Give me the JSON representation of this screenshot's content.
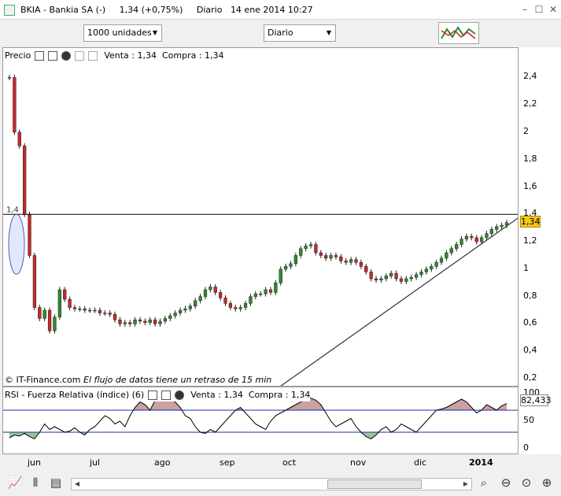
{
  "title_bar": {
    "title": "BKIA - Bankia SA (-)     1,34 (+0,75%)     Diario   14 ene 2014 10:27",
    "minimize": "–",
    "maximize": "☐",
    "close": "✕"
  },
  "toolbar": {
    "quantity_select": "1000 unidades",
    "period_select": "Diario"
  },
  "price_panel": {
    "title": "Precio",
    "quote": "Venta : 1,34  Compra : 1,34",
    "y_ticks": [
      "2,4",
      "2,2",
      "2",
      "1,8",
      "1,6",
      "1,4",
      "1,2",
      "1",
      "0,8",
      "0,6",
      "0,4",
      "0,2"
    ],
    "last_price": "1,34",
    "hline_label": "1,4",
    "footer_source": "© IT-Finance.com",
    "footer_note": "El flujo de datos tiene un retraso de 15 min"
  },
  "rsi_panel": {
    "title": "RSI - Fuerza Relativa (índice) (6)",
    "quote": "Venta : 1,34  Compra : 1,34",
    "y_ticks": [
      "100",
      "50",
      "0"
    ],
    "last_value": "82,433"
  },
  "x_axis": {
    "labels": [
      "jun",
      "jul",
      "ago",
      "sep",
      "oct",
      "nov",
      "dic",
      "2014"
    ]
  },
  "colors": {
    "up": "#2e8b2e",
    "down": "#c8282c",
    "accent": "#f5c518",
    "rsi_upper_fill": "#caa0a0",
    "rsi_lower_fill": "#9cc49c",
    "level_line": "#1a2fa0"
  },
  "chart_data": {
    "type": "candlestick",
    "y_range": [
      0.2,
      2.5
    ],
    "segments": [
      {
        "start": 0,
        "end": 3,
        "values": [
          2.4,
          2.0,
          1.9,
          1.4
        ]
      },
      {
        "start": 4,
        "end": 10,
        "values": [
          1.1,
          0.72,
          0.64,
          0.7,
          0.55,
          0.65,
          0.85
        ]
      },
      {
        "start": 11,
        "end": 20,
        "values": [
          0.78,
          0.72,
          0.71,
          0.71,
          0.7,
          0.7,
          0.7,
          0.68,
          0.68,
          0.67
        ]
      },
      {
        "start": 21,
        "end": 50,
        "values": [
          0.63,
          0.6,
          0.61,
          0.6,
          0.63,
          0.62,
          0.61,
          0.63,
          0.6,
          0.62,
          0.64,
          0.66,
          0.68,
          0.7,
          0.71,
          0.73,
          0.77,
          0.8,
          0.85,
          0.87,
          0.83,
          0.79,
          0.75,
          0.72,
          0.71,
          0.72,
          0.75,
          0.8,
          0.82,
          0.82
        ]
      },
      {
        "start": 51,
        "end": 80,
        "values": [
          0.85,
          0.83,
          0.9,
          1.0,
          1.02,
          1.04,
          1.1,
          1.15,
          1.17,
          1.18,
          1.12,
          1.1,
          1.08,
          1.1,
          1.09,
          1.06,
          1.05,
          1.07,
          1.05,
          1.02,
          0.98,
          0.93,
          0.92,
          0.93,
          0.95,
          0.97,
          0.93,
          0.91,
          0.93,
          0.94
        ]
      },
      {
        "start": 81,
        "end": 99,
        "values": [
          0.96,
          0.98,
          1.0,
          1.02,
          1.05,
          1.08,
          1.12,
          1.15,
          1.18,
          1.22,
          1.24,
          1.23,
          1.2,
          1.23,
          1.26,
          1.29,
          1.31,
          1.32,
          1.34
        ]
      }
    ],
    "trendline": {
      "from_index": 53,
      "from_value": 0.12,
      "to_index": 99,
      "to_value": 1.38
    },
    "rsi": {
      "y_range": [
        0,
        100
      ],
      "levels": [
        70,
        30
      ],
      "values": [
        20,
        25,
        23,
        28,
        22,
        18,
        30,
        45,
        35,
        40,
        35,
        30,
        32,
        38,
        30,
        25,
        35,
        40,
        50,
        60,
        55,
        45,
        50,
        40,
        60,
        75,
        85,
        80,
        70,
        88,
        92,
        95,
        90,
        85,
        75,
        60,
        55,
        40,
        30,
        28,
        35,
        30,
        40,
        50,
        60,
        70,
        75,
        65,
        55,
        45,
        40,
        35,
        50,
        60,
        65,
        70,
        75,
        80,
        85,
        90,
        92,
        88,
        80,
        65,
        50,
        40,
        45,
        50,
        55,
        40,
        30,
        22,
        18,
        25,
        35,
        40,
        30,
        35,
        45,
        40,
        35,
        30,
        40,
        50,
        60,
        70,
        72,
        75,
        80,
        85,
        90,
        85,
        75,
        65,
        70,
        80,
        75,
        70,
        78,
        82
      ]
    }
  }
}
